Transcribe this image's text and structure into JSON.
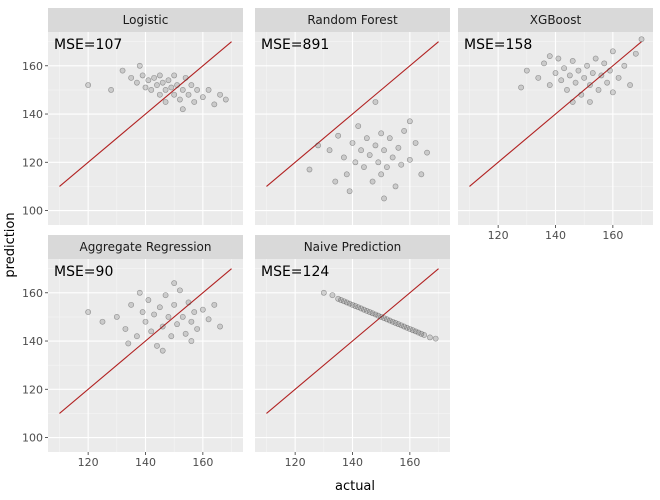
{
  "chart_data": {
    "type": "scatter",
    "layout": "facet_wrap",
    "xlabel": "actual",
    "ylabel": "prediction",
    "xlim": [
      106,
      174
    ],
    "ylim": [
      94,
      174
    ],
    "x_ticks": [
      120,
      140,
      160
    ],
    "y_ticks": [
      100,
      120,
      140,
      160
    ],
    "grid": true,
    "reference_line": {
      "from": [
        110,
        110
      ],
      "to": [
        170,
        170
      ],
      "color": "#b22222"
    },
    "point_color": "#555555",
    "strip_fill": "#d9d9d9",
    "panel_fill": "#ebebeb",
    "panels": [
      {
        "title": "Logistic",
        "annotation": "MSE=107",
        "points": [
          {
            "x": 132,
            "y": 158
          },
          {
            "x": 135,
            "y": 155
          },
          {
            "x": 137,
            "y": 153
          },
          {
            "x": 139,
            "y": 156
          },
          {
            "x": 140,
            "y": 151
          },
          {
            "x": 141,
            "y": 154
          },
          {
            "x": 142,
            "y": 150
          },
          {
            "x": 143,
            "y": 155
          },
          {
            "x": 144,
            "y": 152
          },
          {
            "x": 145,
            "y": 148
          },
          {
            "x": 145,
            "y": 156
          },
          {
            "x": 146,
            "y": 153
          },
          {
            "x": 147,
            "y": 150
          },
          {
            "x": 147,
            "y": 145
          },
          {
            "x": 148,
            "y": 154
          },
          {
            "x": 149,
            "y": 151
          },
          {
            "x": 150,
            "y": 148
          },
          {
            "x": 150,
            "y": 156
          },
          {
            "x": 151,
            "y": 152
          },
          {
            "x": 152,
            "y": 146
          },
          {
            "x": 153,
            "y": 150
          },
          {
            "x": 154,
            "y": 155
          },
          {
            "x": 155,
            "y": 148
          },
          {
            "x": 156,
            "y": 152
          },
          {
            "x": 157,
            "y": 145
          },
          {
            "x": 158,
            "y": 150
          },
          {
            "x": 160,
            "y": 147
          },
          {
            "x": 162,
            "y": 150
          },
          {
            "x": 164,
            "y": 144
          },
          {
            "x": 166,
            "y": 148
          },
          {
            "x": 120,
            "y": 152
          },
          {
            "x": 128,
            "y": 150
          },
          {
            "x": 138,
            "y": 160
          },
          {
            "x": 153,
            "y": 142
          },
          {
            "x": 168,
            "y": 146
          }
        ]
      },
      {
        "title": "Random Forest",
        "annotation": "MSE=891",
        "points": [
          {
            "x": 125,
            "y": 117
          },
          {
            "x": 128,
            "y": 127
          },
          {
            "x": 132,
            "y": 125
          },
          {
            "x": 135,
            "y": 131
          },
          {
            "x": 137,
            "y": 122
          },
          {
            "x": 138,
            "y": 115
          },
          {
            "x": 140,
            "y": 128
          },
          {
            "x": 141,
            "y": 120
          },
          {
            "x": 142,
            "y": 135
          },
          {
            "x": 143,
            "y": 125
          },
          {
            "x": 144,
            "y": 118
          },
          {
            "x": 145,
            "y": 130
          },
          {
            "x": 146,
            "y": 123
          },
          {
            "x": 147,
            "y": 112
          },
          {
            "x": 148,
            "y": 127
          },
          {
            "x": 149,
            "y": 120
          },
          {
            "x": 150,
            "y": 132
          },
          {
            "x": 150,
            "y": 115
          },
          {
            "x": 151,
            "y": 125
          },
          {
            "x": 152,
            "y": 118
          },
          {
            "x": 153,
            "y": 130
          },
          {
            "x": 154,
            "y": 122
          },
          {
            "x": 155,
            "y": 110
          },
          {
            "x": 156,
            "y": 126
          },
          {
            "x": 157,
            "y": 119
          },
          {
            "x": 158,
            "y": 133
          },
          {
            "x": 160,
            "y": 121
          },
          {
            "x": 162,
            "y": 128
          },
          {
            "x": 164,
            "y": 115
          },
          {
            "x": 166,
            "y": 124
          },
          {
            "x": 148,
            "y": 145
          },
          {
            "x": 151,
            "y": 105
          },
          {
            "x": 139,
            "y": 108
          },
          {
            "x": 160,
            "y": 137
          },
          {
            "x": 134,
            "y": 112
          }
        ]
      },
      {
        "title": "XGBoost",
        "annotation": "MSE=158",
        "points": [
          {
            "x": 130,
            "y": 158
          },
          {
            "x": 134,
            "y": 155
          },
          {
            "x": 136,
            "y": 161
          },
          {
            "x": 138,
            "y": 152
          },
          {
            "x": 140,
            "y": 157
          },
          {
            "x": 141,
            "y": 163
          },
          {
            "x": 142,
            "y": 154
          },
          {
            "x": 143,
            "y": 159
          },
          {
            "x": 144,
            "y": 150
          },
          {
            "x": 145,
            "y": 156
          },
          {
            "x": 146,
            "y": 162
          },
          {
            "x": 147,
            "y": 153
          },
          {
            "x": 148,
            "y": 158
          },
          {
            "x": 149,
            "y": 148
          },
          {
            "x": 150,
            "y": 155
          },
          {
            "x": 151,
            "y": 160
          },
          {
            "x": 152,
            "y": 152
          },
          {
            "x": 153,
            "y": 157
          },
          {
            "x": 154,
            "y": 163
          },
          {
            "x": 155,
            "y": 150
          },
          {
            "x": 156,
            "y": 156
          },
          {
            "x": 157,
            "y": 161
          },
          {
            "x": 158,
            "y": 153
          },
          {
            "x": 159,
            "y": 158
          },
          {
            "x": 160,
            "y": 149
          },
          {
            "x": 162,
            "y": 155
          },
          {
            "x": 164,
            "y": 160
          },
          {
            "x": 166,
            "y": 152
          },
          {
            "x": 168,
            "y": 165
          },
          {
            "x": 170,
            "y": 171
          },
          {
            "x": 146,
            "y": 145
          },
          {
            "x": 152,
            "y": 145
          },
          {
            "x": 128,
            "y": 151
          },
          {
            "x": 138,
            "y": 164
          },
          {
            "x": 160,
            "y": 166
          }
        ]
      },
      {
        "title": "Aggregate Regression",
        "annotation": "MSE=90",
        "points": [
          {
            "x": 120,
            "y": 152
          },
          {
            "x": 125,
            "y": 148
          },
          {
            "x": 130,
            "y": 150
          },
          {
            "x": 133,
            "y": 145
          },
          {
            "x": 135,
            "y": 155
          },
          {
            "x": 137,
            "y": 142
          },
          {
            "x": 139,
            "y": 152
          },
          {
            "x": 140,
            "y": 148
          },
          {
            "x": 141,
            "y": 157
          },
          {
            "x": 142,
            "y": 144
          },
          {
            "x": 143,
            "y": 151
          },
          {
            "x": 144,
            "y": 138
          },
          {
            "x": 145,
            "y": 154
          },
          {
            "x": 146,
            "y": 146
          },
          {
            "x": 147,
            "y": 159
          },
          {
            "x": 148,
            "y": 150
          },
          {
            "x": 149,
            "y": 142
          },
          {
            "x": 150,
            "y": 155
          },
          {
            "x": 151,
            "y": 147
          },
          {
            "x": 152,
            "y": 161
          },
          {
            "x": 153,
            "y": 150
          },
          {
            "x": 154,
            "y": 143
          },
          {
            "x": 155,
            "y": 156
          },
          {
            "x": 156,
            "y": 148
          },
          {
            "x": 157,
            "y": 152
          },
          {
            "x": 158,
            "y": 145
          },
          {
            "x": 160,
            "y": 153
          },
          {
            "x": 162,
            "y": 149
          },
          {
            "x": 164,
            "y": 155
          },
          {
            "x": 166,
            "y": 146
          },
          {
            "x": 150,
            "y": 164
          },
          {
            "x": 146,
            "y": 136
          },
          {
            "x": 138,
            "y": 160
          },
          {
            "x": 156,
            "y": 140
          },
          {
            "x": 134,
            "y": 139
          }
        ]
      },
      {
        "title": "Naive Prediction",
        "annotation": "MSE=124",
        "points": [
          {
            "x": 130,
            "y": 160
          },
          {
            "x": 133,
            "y": 159
          },
          {
            "x": 135,
            "y": 157.5
          },
          {
            "x": 137,
            "y": 156.5
          },
          {
            "x": 138,
            "y": 156
          },
          {
            "x": 139,
            "y": 155.5
          },
          {
            "x": 140,
            "y": 155
          },
          {
            "x": 141,
            "y": 154.5
          },
          {
            "x": 142,
            "y": 154
          },
          {
            "x": 143,
            "y": 153.5
          },
          {
            "x": 144,
            "y": 153
          },
          {
            "x": 145,
            "y": 152.5
          },
          {
            "x": 146,
            "y": 152
          },
          {
            "x": 147,
            "y": 151.5
          },
          {
            "x": 148,
            "y": 151
          },
          {
            "x": 149,
            "y": 150.5
          },
          {
            "x": 150,
            "y": 150
          },
          {
            "x": 151,
            "y": 149.5
          },
          {
            "x": 152,
            "y": 149
          },
          {
            "x": 153,
            "y": 148.5
          },
          {
            "x": 154,
            "y": 148
          },
          {
            "x": 155,
            "y": 147.5
          },
          {
            "x": 156,
            "y": 147
          },
          {
            "x": 157,
            "y": 146.5
          },
          {
            "x": 158,
            "y": 146
          },
          {
            "x": 159,
            "y": 145.5
          },
          {
            "x": 160,
            "y": 145
          },
          {
            "x": 161,
            "y": 144.5
          },
          {
            "x": 162,
            "y": 144
          },
          {
            "x": 163,
            "y": 143.5
          },
          {
            "x": 164,
            "y": 143
          },
          {
            "x": 165,
            "y": 142.5
          },
          {
            "x": 167,
            "y": 141.5
          },
          {
            "x": 169,
            "y": 141
          },
          {
            "x": 136,
            "y": 157
          }
        ]
      }
    ]
  }
}
